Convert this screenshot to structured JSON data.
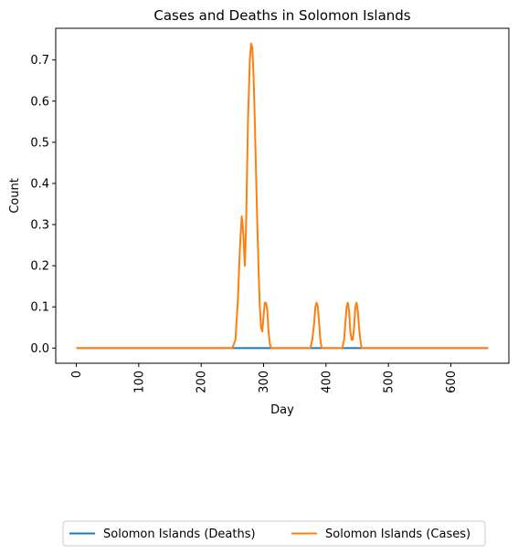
{
  "chart_data": {
    "type": "line",
    "title": "Cases and Deaths in Solomon Islands",
    "xlabel": "Day",
    "ylabel": "Count",
    "xlim": [
      -33,
      693
    ],
    "ylim": [
      -0.037,
      0.777
    ],
    "xticks": [
      0,
      100,
      200,
      300,
      400,
      500,
      600
    ],
    "xtick_labels": [
      "0",
      "100",
      "200",
      "300",
      "400",
      "500",
      "600"
    ],
    "yticks": [
      0.0,
      0.1,
      0.2,
      0.3,
      0.4,
      0.5,
      0.6,
      0.7
    ],
    "ytick_labels": [
      "0.0",
      "0.1",
      "0.2",
      "0.3",
      "0.4",
      "0.5",
      "0.6",
      "0.7"
    ],
    "xtick_rotation": 90,
    "grid": false,
    "legend_position": "bottom-center",
    "series": [
      {
        "name": "Solomon Islands (Deaths)",
        "color": "#1f77b4",
        "x": [
          0,
          660
        ],
        "y": [
          0.0,
          0.0
        ]
      },
      {
        "name": "Solomon Islands (Cases)",
        "color": "#ff7f0e",
        "x": [
          0,
          250,
          255,
          259,
          262,
          265,
          267,
          270,
          272,
          275,
          278,
          280,
          282,
          284,
          286,
          288,
          290,
          292,
          294,
          296,
          298,
          300,
          302,
          304,
          306,
          308,
          310,
          312,
          315,
          320,
          370,
          375,
          378,
          381,
          383,
          385,
          387,
          389,
          391,
          393,
          395,
          400,
          422,
          426,
          429,
          431,
          433,
          435,
          437,
          439,
          441,
          443,
          445,
          447,
          449,
          451,
          453,
          455,
          457,
          460,
          660
        ],
        "y": [
          0.0,
          0.0,
          0.02,
          0.12,
          0.24,
          0.32,
          0.29,
          0.2,
          0.3,
          0.55,
          0.7,
          0.74,
          0.73,
          0.66,
          0.55,
          0.42,
          0.3,
          0.19,
          0.1,
          0.05,
          0.04,
          0.08,
          0.11,
          0.11,
          0.09,
          0.04,
          0.01,
          0.0,
          0.0,
          0.0,
          0.0,
          0.0,
          0.02,
          0.06,
          0.1,
          0.11,
          0.1,
          0.06,
          0.02,
          0.0,
          0.0,
          0.0,
          0.0,
          0.0,
          0.02,
          0.06,
          0.1,
          0.11,
          0.09,
          0.04,
          0.02,
          0.02,
          0.05,
          0.1,
          0.11,
          0.09,
          0.05,
          0.02,
          0.0,
          0.0,
          0.0
        ]
      }
    ]
  }
}
